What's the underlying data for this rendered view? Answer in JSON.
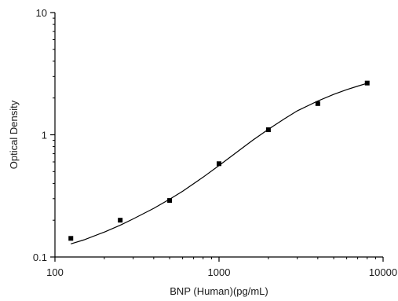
{
  "chart_data": {
    "type": "scatter",
    "title": "",
    "xlabel": "BNP (Human)(pg/mL)",
    "ylabel": "Optical Density",
    "xscale": "log",
    "yscale": "log",
    "xlim": [
      100,
      10000
    ],
    "ylim": [
      0.1,
      10
    ],
    "x_ticks": [
      "100",
      "1000",
      "10000"
    ],
    "y_ticks": [
      "0.1",
      "1",
      "10"
    ],
    "grid": false,
    "legend": "none",
    "series": [
      {
        "marker": "square",
        "color": "#000000",
        "points": [
          {
            "x": 125,
            "y": 0.142
          },
          {
            "x": 250,
            "y": 0.2
          },
          {
            "x": 500,
            "y": 0.29
          },
          {
            "x": 1000,
            "y": 0.58
          },
          {
            "x": 2000,
            "y": 1.1
          },
          {
            "x": 4000,
            "y": 1.8
          },
          {
            "x": 8000,
            "y": 2.65
          }
        ]
      }
    ],
    "fit_curve": {
      "type": "four-parameter logistic",
      "color": "#000000",
      "points": [
        {
          "x": 125,
          "y": 0.128
        },
        {
          "x": 150,
          "y": 0.138
        },
        {
          "x": 200,
          "y": 0.16
        },
        {
          "x": 250,
          "y": 0.182
        },
        {
          "x": 300,
          "y": 0.205
        },
        {
          "x": 400,
          "y": 0.25
        },
        {
          "x": 500,
          "y": 0.297
        },
        {
          "x": 600,
          "y": 0.345
        },
        {
          "x": 800,
          "y": 0.45
        },
        {
          "x": 1000,
          "y": 0.56
        },
        {
          "x": 1300,
          "y": 0.73
        },
        {
          "x": 1600,
          "y": 0.9
        },
        {
          "x": 2000,
          "y": 1.11
        },
        {
          "x": 2500,
          "y": 1.35
        },
        {
          "x": 3000,
          "y": 1.57
        },
        {
          "x": 4000,
          "y": 1.89
        },
        {
          "x": 5000,
          "y": 2.14
        },
        {
          "x": 6000,
          "y": 2.34
        },
        {
          "x": 7000,
          "y": 2.5
        },
        {
          "x": 8000,
          "y": 2.64
        }
      ]
    }
  }
}
